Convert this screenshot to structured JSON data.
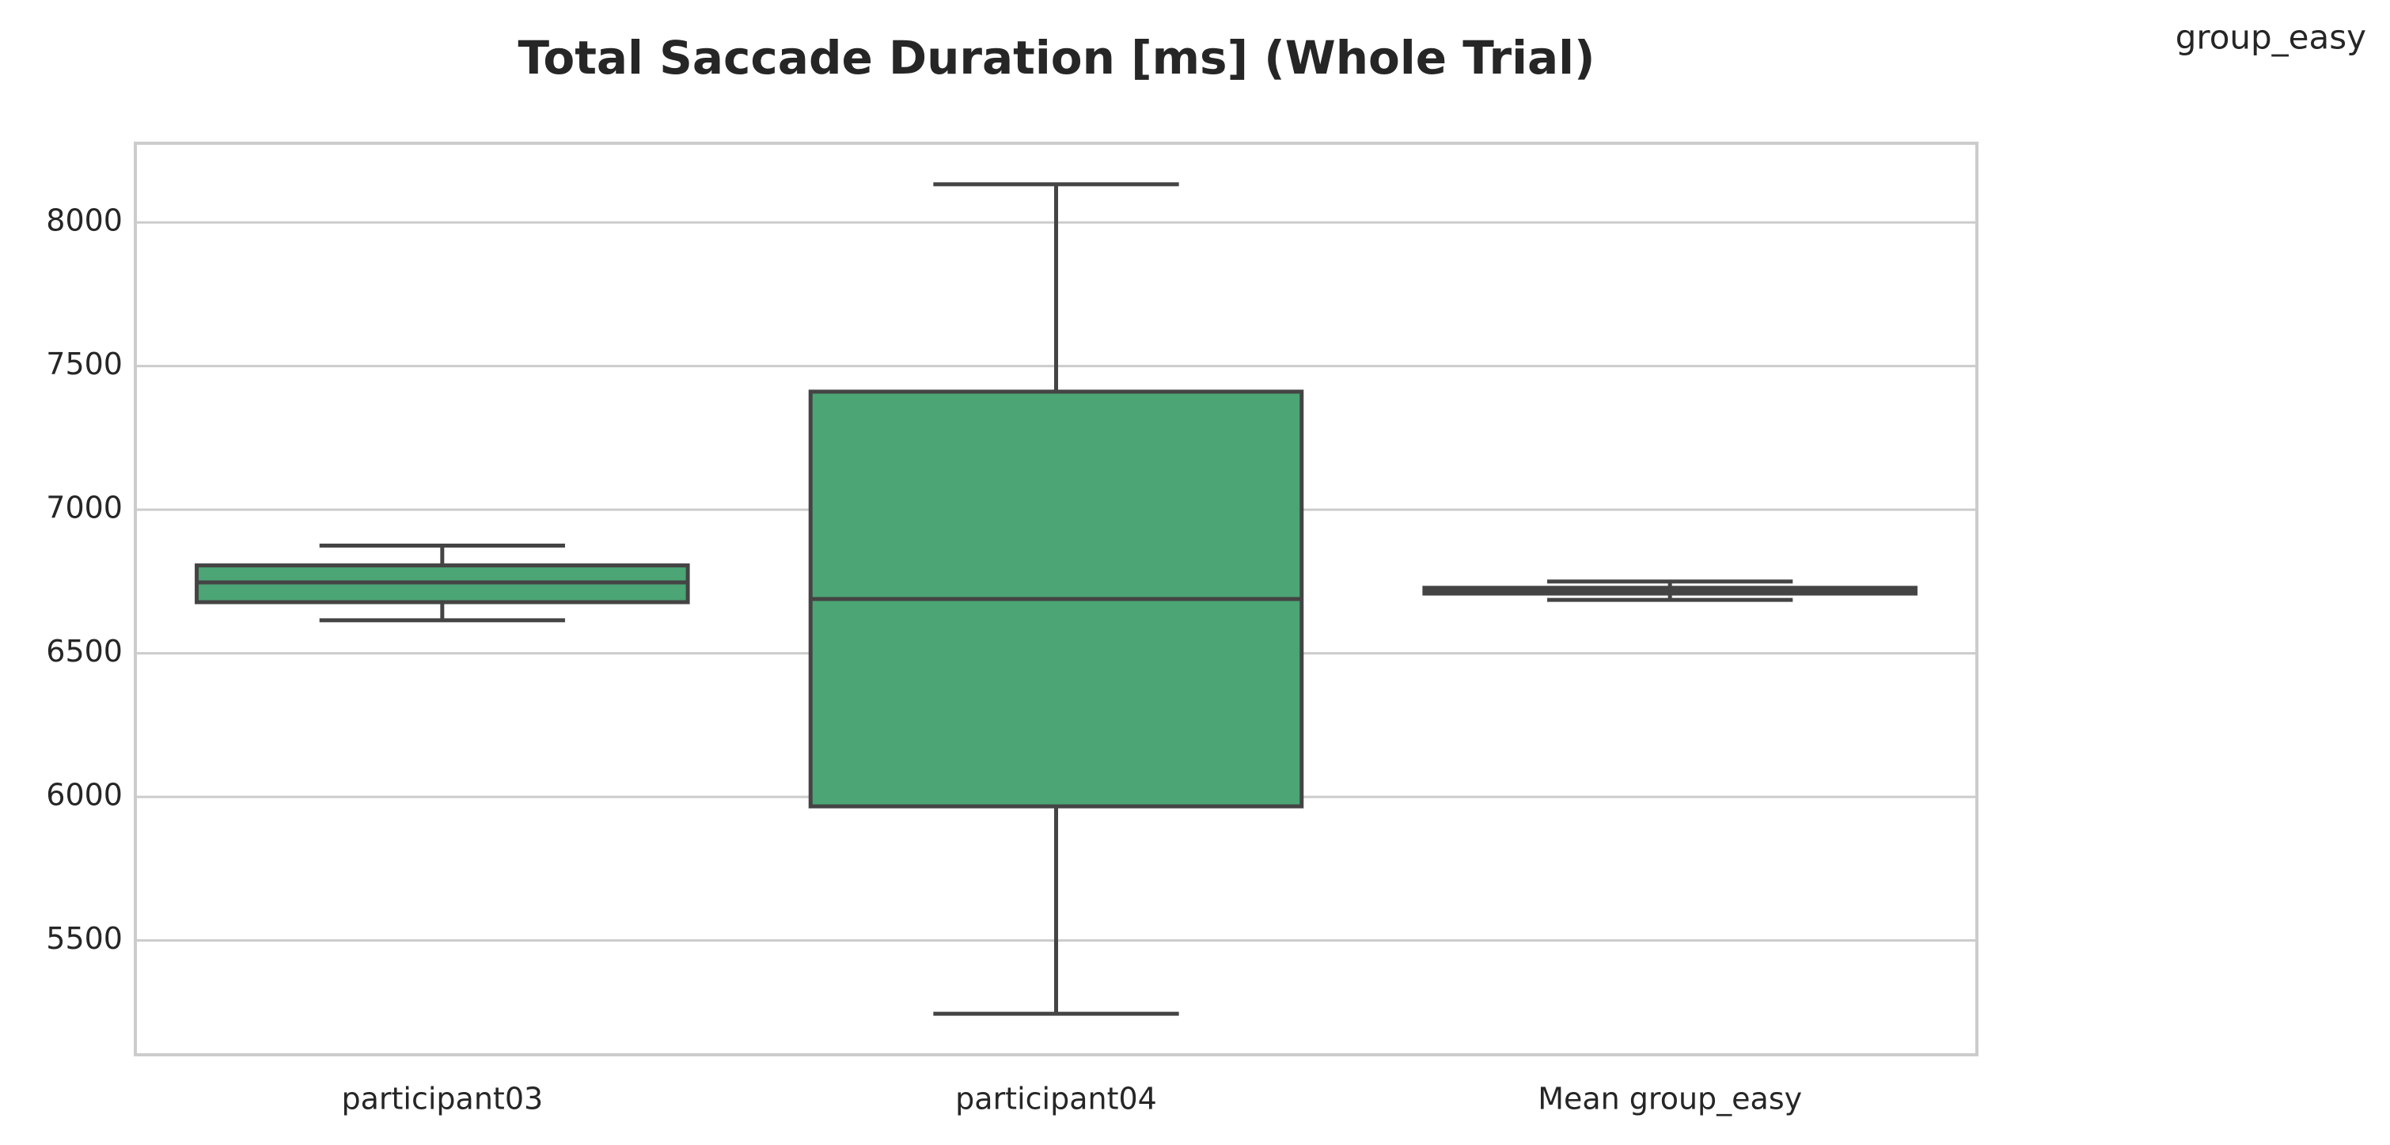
{
  "chart_data": {
    "type": "box",
    "title": "Total Saccade Duration [ms] (Whole Trial)",
    "annotation": "group_easy",
    "categories": [
      "participant03",
      "participant04",
      "Mean group_easy"
    ],
    "min": [
      6615,
      5245,
      6686
    ],
    "q1": [
      6678,
      5967,
      6708
    ],
    "median": [
      6747,
      6689,
      6718
    ],
    "q3": [
      6806,
      7411,
      6728
    ],
    "max": [
      6875,
      8133,
      6750
    ],
    "color": "#4ba574",
    "edge_color": "#444444",
    "ylim": [
      5102,
      8276
    ],
    "yticks": [
      5500,
      6000,
      6500,
      7000,
      7500,
      8000
    ],
    "grid": true
  }
}
